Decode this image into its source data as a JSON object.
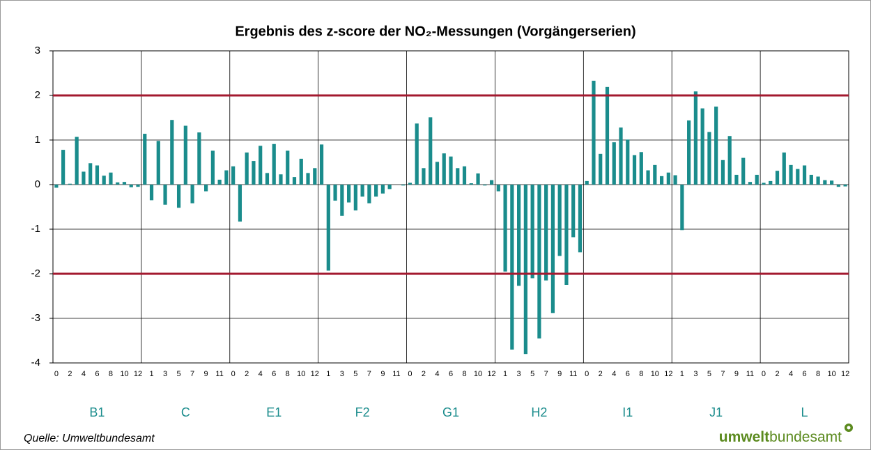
{
  "chart_data": {
    "type": "bar",
    "title": "Ergebnis des z-score der NO₂-Messungen (Vorgängerserien)",
    "groups": [
      "B1",
      "C",
      "E1",
      "F2",
      "G1",
      "H2",
      "I1",
      "J1",
      "L"
    ],
    "categories": [
      "0",
      null,
      "2",
      null,
      "4",
      null,
      "6",
      null,
      "8",
      null,
      "10",
      null,
      "12",
      null,
      "1",
      null,
      "3",
      null,
      "5",
      null,
      "7",
      null,
      "9",
      null,
      "11",
      null,
      "0",
      null,
      "2",
      null,
      "4",
      null,
      "6",
      null,
      "8",
      null,
      "10",
      null,
      "12",
      null,
      "1",
      null,
      "3",
      null,
      "5",
      null,
      "7",
      null,
      "9",
      null,
      "11",
      null,
      "0",
      null,
      "2",
      null,
      "4",
      null,
      "6",
      null,
      "8",
      null,
      "10",
      null,
      "12",
      null,
      "1",
      null,
      "3",
      null,
      "5",
      null,
      "7",
      null,
      "9",
      null,
      "11",
      null,
      "0",
      null,
      "2",
      null,
      "4",
      null,
      "6",
      null,
      "8",
      null,
      "10",
      null,
      "12",
      null,
      "1",
      null,
      "3",
      null,
      "5",
      null,
      "7",
      null,
      "9",
      null,
      "11",
      null,
      "0",
      null,
      "2",
      null,
      "4",
      null,
      "6",
      null,
      "8",
      null,
      "10",
      null,
      "12"
    ],
    "values": [
      -0.07,
      0.78,
      0.02,
      1.07,
      0.29,
      0.48,
      0.43,
      0.2,
      0.27,
      0.05,
      0.06,
      -0.06,
      -0.05,
      1.14,
      -0.35,
      0.98,
      -0.45,
      1.45,
      -0.52,
      1.32,
      -0.42,
      1.17,
      -0.15,
      0.76,
      0.11,
      0.32,
      0.41,
      -0.83,
      0.72,
      0.53,
      0.87,
      0.26,
      0.91,
      0.23,
      0.76,
      0.17,
      0.58,
      0.26,
      0.37,
      0.9,
      -1.93,
      -0.36,
      -0.7,
      -0.4,
      -0.58,
      -0.27,
      -0.42,
      -0.27,
      -0.2,
      -0.1,
      0,
      -0.02,
      0.04,
      1.37,
      0.37,
      1.51,
      0.51,
      0.7,
      0.63,
      0.37,
      0.41,
      0.03,
      0.25,
      -0.02,
      0.1,
      -0.15,
      -1.95,
      -3.7,
      -2.27,
      -3.8,
      -2.1,
      -3.45,
      -2.15,
      -2.88,
      -1.6,
      -2.25,
      -1.18,
      -1.52,
      0.08,
      2.33,
      0.69,
      2.19,
      0.95,
      1.28,
      1.01,
      0.66,
      0.73,
      0.32,
      0.44,
      0.19,
      0.27,
      0.21,
      -1.02,
      1.44,
      2.09,
      1.71,
      1.18,
      1.75,
      0.55,
      1.09,
      0.22,
      0.6,
      0.06,
      0.22,
      0.04,
      0.08,
      0.31,
      0.72,
      0.44,
      0.35,
      0.43,
      0.22,
      0.18,
      0.1,
      0.09,
      -0.05,
      -0.04
    ],
    "color": "#1a8c8c",
    "ylim": [
      -4,
      3
    ],
    "yticks": [
      -4,
      -3,
      -2,
      -1,
      0,
      1,
      2,
      3
    ],
    "grid": true,
    "reference_lines": [
      2,
      -2
    ],
    "reference_color": "#a3192f",
    "source": "Quelle: Umweltbundesamt",
    "logo": {
      "bold": "umwelt",
      "regular": "bundesamt"
    }
  }
}
